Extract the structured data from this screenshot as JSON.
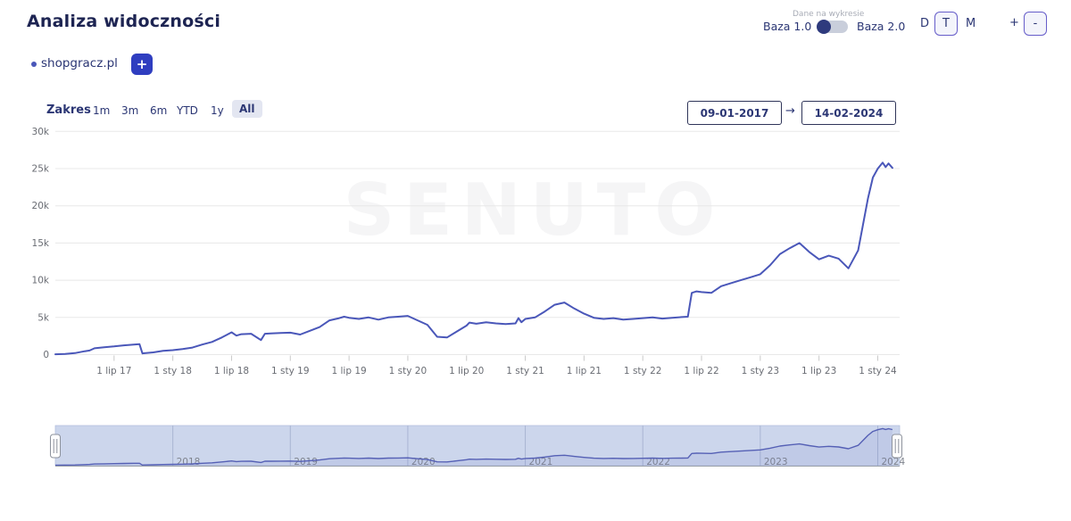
{
  "page": {
    "title": "Analiza widoczności"
  },
  "legend": {
    "domain": "shopgracz.pl",
    "add_button": "+"
  },
  "data_source": {
    "caption": "Dane na wykresie",
    "option_left": "Baza 1.0",
    "option_right": "Baza 2.0",
    "toggle_state": "left"
  },
  "granularity": {
    "options": [
      "D",
      "T",
      "M"
    ],
    "selected": "T"
  },
  "zoom_controls": {
    "plus": "+",
    "minus": "-"
  },
  "range": {
    "label": "Zakres",
    "options": [
      "1m",
      "3m",
      "6m",
      "YTD",
      "1y",
      "All"
    ],
    "selected": "All"
  },
  "date_range": {
    "from": "09-01-2017",
    "arrow": "→",
    "to": "14-02-2024"
  },
  "colors": {
    "line": "#4a57b9",
    "accent": "#2f3ec0",
    "navy": "#2b3674",
    "grid": "#e8e8e8",
    "axis_text": "#6a6d74",
    "nav_band": "#ccd6ec",
    "nav_gridline": "#a9b5d3",
    "nav_area": "rgba(86,99,182,0.10)",
    "watermark": "#f5f5f6"
  },
  "chart_data": {
    "type": "line",
    "title": "",
    "xlabel": "",
    "ylabel": "",
    "x_unit": "months_since_2017-01",
    "y_unit": "thousands_of_keywords",
    "ylim": [
      0,
      30
    ],
    "grid": true,
    "watermark": "SENUTO",
    "y_ticks": [
      {
        "v": 30,
        "label": "30k"
      },
      {
        "v": 25,
        "label": "25k"
      },
      {
        "v": 20,
        "label": "20k"
      },
      {
        "v": 15,
        "label": "15k"
      },
      {
        "v": 10,
        "label": "10k"
      },
      {
        "v": 5,
        "label": "5k"
      },
      {
        "v": 0,
        "label": "0"
      }
    ],
    "x_ticks": [
      {
        "m": 6,
        "label": "1 lip 17"
      },
      {
        "m": 12,
        "label": "1 sty 18"
      },
      {
        "m": 18,
        "label": "1 lip 18"
      },
      {
        "m": 24,
        "label": "1 sty 19"
      },
      {
        "m": 30,
        "label": "1 lip 19"
      },
      {
        "m": 36,
        "label": "1 sty 20"
      },
      {
        "m": 42,
        "label": "1 lip 20"
      },
      {
        "m": 48,
        "label": "1 sty 21"
      },
      {
        "m": 54,
        "label": "1 lip 21"
      },
      {
        "m": 60,
        "label": "1 sty 22"
      },
      {
        "m": 66,
        "label": "1 lip 22"
      },
      {
        "m": 72,
        "label": "1 sty 23"
      },
      {
        "m": 78,
        "label": "1 lip 23"
      },
      {
        "m": 84,
        "label": "1 sty 24"
      }
    ],
    "series": [
      {
        "name": "shopgracz.pl",
        "color": "#4a57b9",
        "points": [
          [
            0,
            0.05
          ],
          [
            1,
            0.1
          ],
          [
            2,
            0.2
          ],
          [
            3,
            0.45
          ],
          [
            3.5,
            0.55
          ],
          [
            4,
            0.85
          ],
          [
            5,
            1.0
          ],
          [
            6,
            1.1
          ],
          [
            7,
            1.25
          ],
          [
            8,
            1.35
          ],
          [
            8.6,
            1.4
          ],
          [
            8.9,
            0.15
          ],
          [
            9,
            0.18
          ],
          [
            10,
            0.3
          ],
          [
            11,
            0.5
          ],
          [
            12,
            0.6
          ],
          [
            13,
            0.75
          ],
          [
            14,
            0.95
          ],
          [
            15,
            1.35
          ],
          [
            16,
            1.7
          ],
          [
            17,
            2.3
          ],
          [
            18,
            3.0
          ],
          [
            18.5,
            2.55
          ],
          [
            19,
            2.75
          ],
          [
            20,
            2.8
          ],
          [
            21,
            1.95
          ],
          [
            21.4,
            2.8
          ],
          [
            22,
            2.85
          ],
          [
            23,
            2.9
          ],
          [
            24,
            2.95
          ],
          [
            25,
            2.7
          ],
          [
            26,
            3.2
          ],
          [
            27,
            3.7
          ],
          [
            28,
            4.6
          ],
          [
            29,
            4.9
          ],
          [
            29.5,
            5.1
          ],
          [
            30,
            4.95
          ],
          [
            31,
            4.8
          ],
          [
            32,
            5.0
          ],
          [
            33,
            4.7
          ],
          [
            34,
            5.0
          ],
          [
            35,
            5.1
          ],
          [
            36,
            5.2
          ],
          [
            37,
            4.6
          ],
          [
            38,
            4.0
          ],
          [
            39,
            2.4
          ],
          [
            40,
            2.3
          ],
          [
            41,
            3.1
          ],
          [
            42,
            3.9
          ],
          [
            42.3,
            4.3
          ],
          [
            43,
            4.15
          ],
          [
            44,
            4.35
          ],
          [
            45,
            4.2
          ],
          [
            46,
            4.1
          ],
          [
            47,
            4.2
          ],
          [
            47.3,
            4.9
          ],
          [
            47.6,
            4.35
          ],
          [
            48,
            4.8
          ],
          [
            49,
            5.0
          ],
          [
            50,
            5.8
          ],
          [
            51,
            6.7
          ],
          [
            52,
            7.0
          ],
          [
            53,
            6.2
          ],
          [
            54,
            5.5
          ],
          [
            55,
            4.95
          ],
          [
            56,
            4.8
          ],
          [
            57,
            4.9
          ],
          [
            58,
            4.7
          ],
          [
            59,
            4.8
          ],
          [
            60,
            4.9
          ],
          [
            61,
            5.0
          ],
          [
            62,
            4.85
          ],
          [
            63,
            4.95
          ],
          [
            64,
            5.05
          ],
          [
            64.6,
            5.1
          ],
          [
            65,
            8.3
          ],
          [
            65.5,
            8.5
          ],
          [
            66,
            8.4
          ],
          [
            67,
            8.3
          ],
          [
            68,
            9.2
          ],
          [
            69,
            9.6
          ],
          [
            70,
            10.0
          ],
          [
            71,
            10.4
          ],
          [
            72,
            10.8
          ],
          [
            73,
            12.0
          ],
          [
            74,
            13.5
          ],
          [
            75,
            14.3
          ],
          [
            76,
            15.0
          ],
          [
            77,
            13.8
          ],
          [
            78,
            12.8
          ],
          [
            79,
            13.3
          ],
          [
            80,
            12.9
          ],
          [
            81,
            11.6
          ],
          [
            82,
            14.0
          ],
          [
            82.5,
            17.5
          ],
          [
            83,
            21.0
          ],
          [
            83.5,
            23.8
          ],
          [
            84,
            25.0
          ],
          [
            84.5,
            25.8
          ],
          [
            84.8,
            25.2
          ],
          [
            85.1,
            25.7
          ],
          [
            85.5,
            25.1
          ]
        ]
      }
    ],
    "navigator_years": [
      {
        "m": 12,
        "label": "2018"
      },
      {
        "m": 24,
        "label": "2019"
      },
      {
        "m": 36,
        "label": "2020"
      },
      {
        "m": 48,
        "label": "2021"
      },
      {
        "m": 60,
        "label": "2022"
      },
      {
        "m": 72,
        "label": "2023"
      },
      {
        "m": 84,
        "label": "2024"
      }
    ]
  }
}
